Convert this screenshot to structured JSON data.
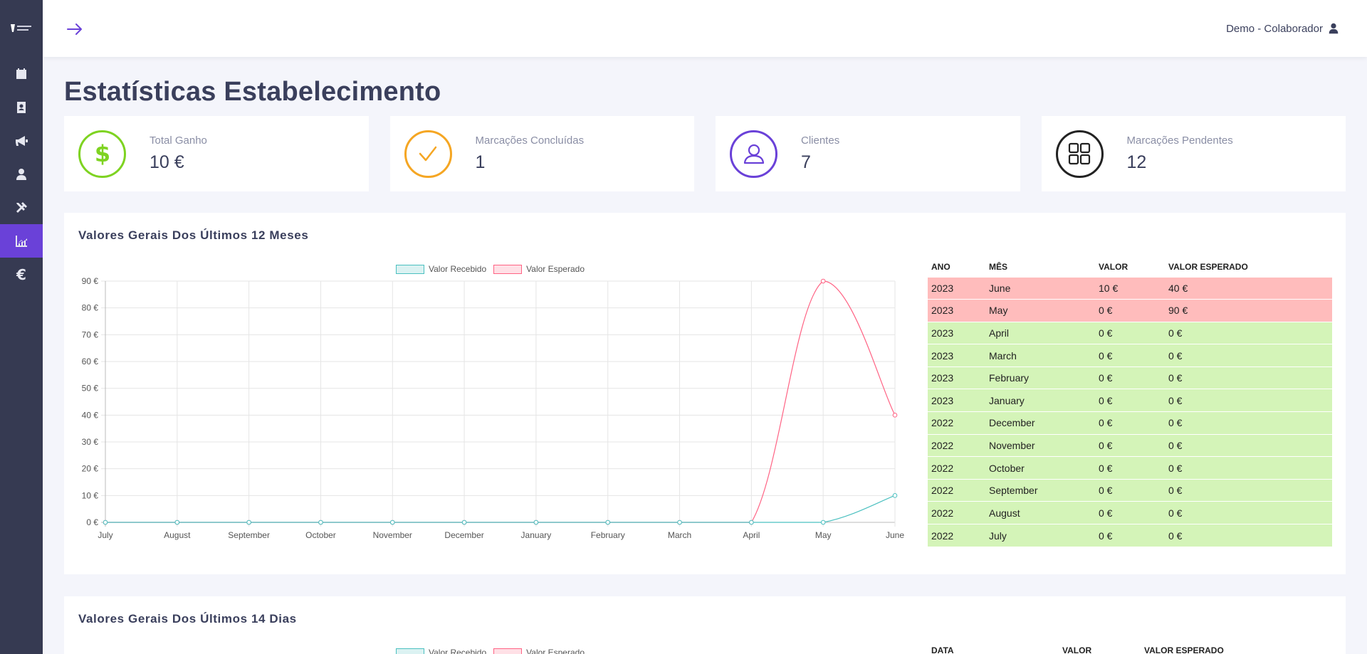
{
  "user": {
    "name": "Demo - Colaborador"
  },
  "page_title": "Estatísticas Estabelecimento",
  "sidebar": [
    {
      "icon": "calendar-icon"
    },
    {
      "icon": "address-book-icon"
    },
    {
      "icon": "megaphone-icon"
    },
    {
      "icon": "user-icon"
    },
    {
      "icon": "tools-icon"
    },
    {
      "icon": "chart-line-icon",
      "active": true
    },
    {
      "icon": "euro-icon",
      "symbol": "€"
    }
  ],
  "stats": [
    {
      "label": "Total Ganho",
      "value": "10 €",
      "color": "#7ed321",
      "icon": "dollar-icon"
    },
    {
      "label": "Marcações Concluídas",
      "value": "1",
      "color": "#f5a623",
      "icon": "check-icon"
    },
    {
      "label": "Clientes",
      "value": "7",
      "color": "#6a41d8",
      "icon": "user-outline-icon"
    },
    {
      "label": "Marcações Pendentes",
      "value": "12",
      "color": "#222222",
      "icon": "grid-icon"
    }
  ],
  "panel_months": {
    "title": "Valores Gerais Dos Últimos 12 Meses",
    "legend": [
      "Valor Recebido",
      "Valor Esperado"
    ],
    "table": {
      "headers": [
        "ANO",
        "MÊS",
        "VALOR",
        "VALOR ESPERADO"
      ],
      "rows": [
        {
          "year": "2023",
          "month": "June",
          "value": "10 €",
          "expected": "40 €",
          "status": "red"
        },
        {
          "year": "2023",
          "month": "May",
          "value": "0 €",
          "expected": "90 €",
          "status": "red"
        },
        {
          "year": "2023",
          "month": "April",
          "value": "0 €",
          "expected": "0 €",
          "status": "green"
        },
        {
          "year": "2023",
          "month": "March",
          "value": "0 €",
          "expected": "0 €",
          "status": "green"
        },
        {
          "year": "2023",
          "month": "February",
          "value": "0 €",
          "expected": "0 €",
          "status": "green"
        },
        {
          "year": "2023",
          "month": "January",
          "value": "0 €",
          "expected": "0 €",
          "status": "green"
        },
        {
          "year": "2022",
          "month": "December",
          "value": "0 €",
          "expected": "0 €",
          "status": "green"
        },
        {
          "year": "2022",
          "month": "November",
          "value": "0 €",
          "expected": "0 €",
          "status": "green"
        },
        {
          "year": "2022",
          "month": "October",
          "value": "0 €",
          "expected": "0 €",
          "status": "green"
        },
        {
          "year": "2022",
          "month": "September",
          "value": "0 €",
          "expected": "0 €",
          "status": "green"
        },
        {
          "year": "2022",
          "month": "August",
          "value": "0 €",
          "expected": "0 €",
          "status": "green"
        },
        {
          "year": "2022",
          "month": "July",
          "value": "0 €",
          "expected": "0 €",
          "status": "green"
        }
      ]
    }
  },
  "panel_days": {
    "title": "Valores Gerais Dos Últimos 14 Dias",
    "legend": [
      "Valor Recebido",
      "Valor Esperado"
    ],
    "table_headers": [
      "DATA",
      "VALOR",
      "VALOR ESPERADO"
    ]
  },
  "chart_data": {
    "type": "line",
    "categories": [
      "July",
      "August",
      "September",
      "October",
      "November",
      "December",
      "January",
      "February",
      "March",
      "April",
      "May",
      "June"
    ],
    "series": [
      {
        "name": "Valor Recebido",
        "values": [
          0,
          0,
          0,
          0,
          0,
          0,
          0,
          0,
          0,
          0,
          0,
          10
        ],
        "color": "#4bc0c0"
      },
      {
        "name": "Valor Esperado",
        "values": [
          0,
          0,
          0,
          0,
          0,
          0,
          0,
          0,
          0,
          0,
          90,
          40
        ],
        "color": "#ff6384"
      }
    ],
    "ylim": [
      0,
      90
    ],
    "yticks": [
      "0 €",
      "10 €",
      "20 €",
      "30 €",
      "40 €",
      "50 €",
      "60 €",
      "70 €",
      "80 €",
      "90 €"
    ],
    "legend_position": "top",
    "grid": true
  }
}
